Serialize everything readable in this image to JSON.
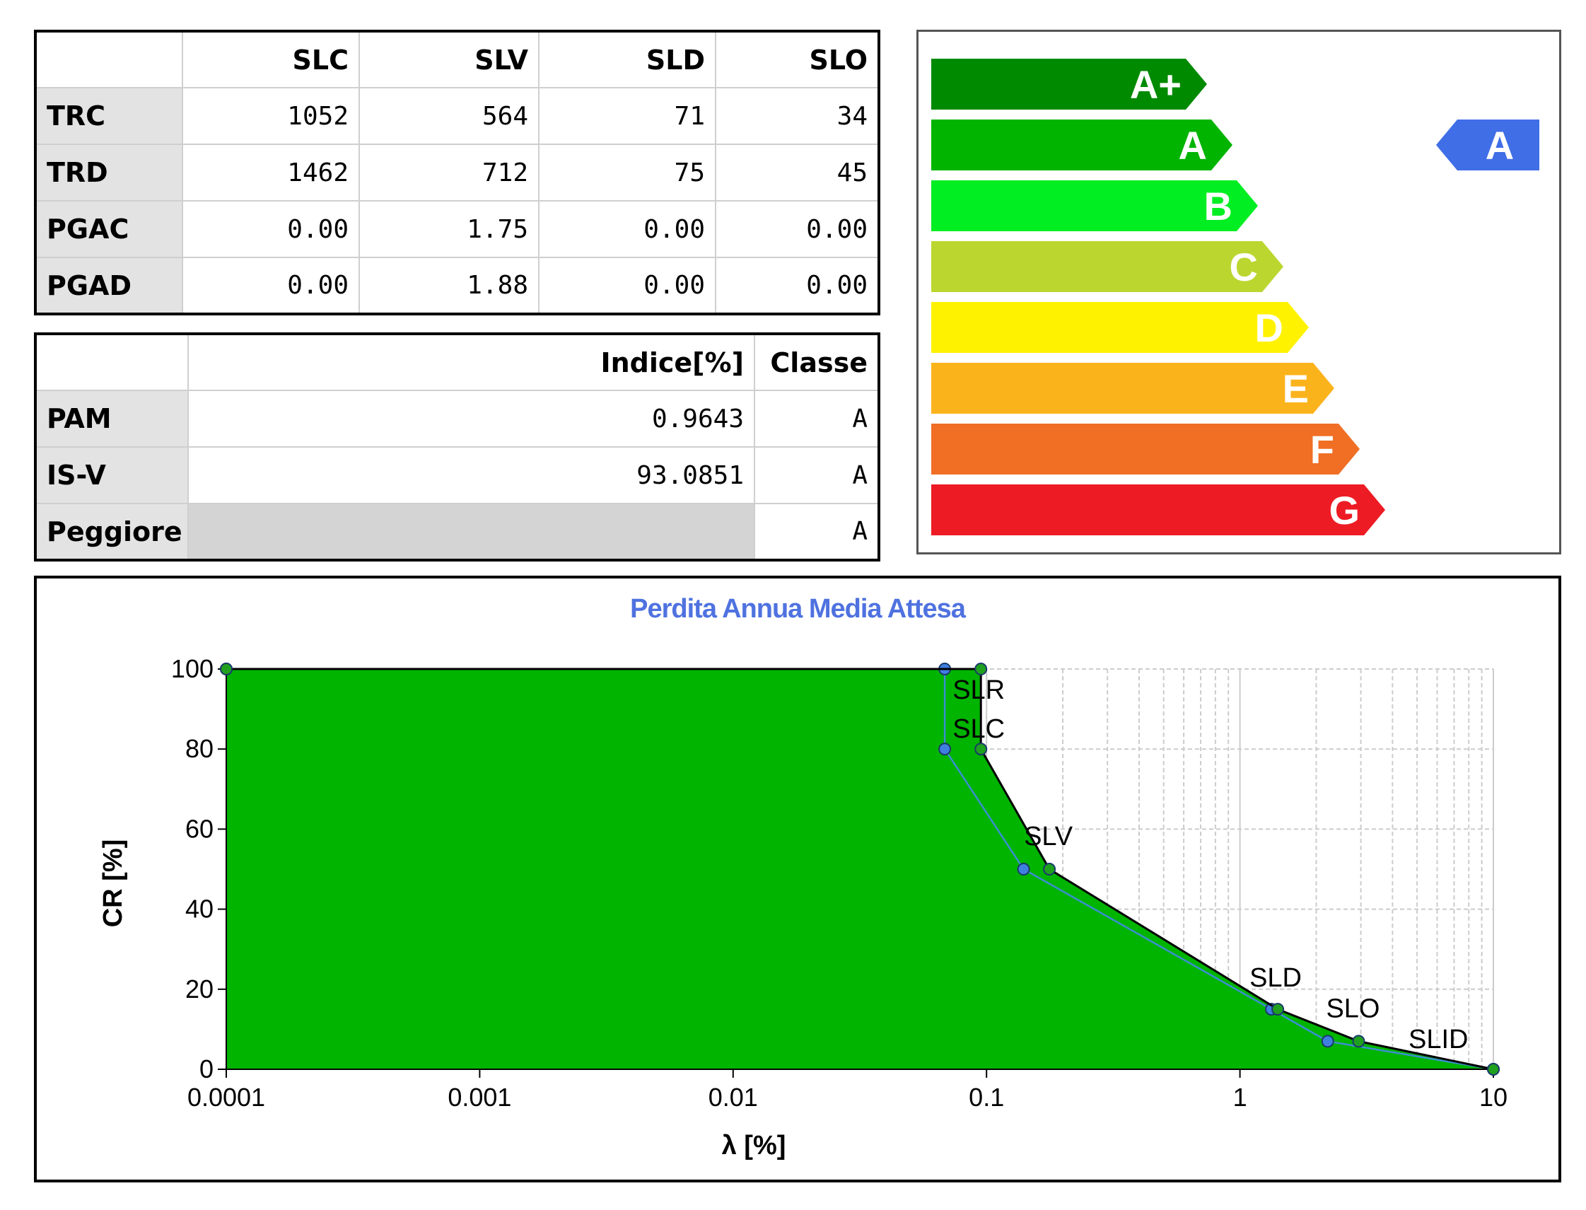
{
  "table_states": {
    "columns": [
      "SLC",
      "SLV",
      "SLD",
      "SLO"
    ],
    "rows": [
      {
        "label": "TRC",
        "values": [
          "1052",
          "564",
          "71",
          "34"
        ]
      },
      {
        "label": "TRD",
        "values": [
          "1462",
          "712",
          "75",
          "45"
        ]
      },
      {
        "label": "PGAC",
        "values": [
          "0.00",
          "1.75",
          "0.00",
          "0.00"
        ]
      },
      {
        "label": "PGAD",
        "values": [
          "0.00",
          "1.88",
          "0.00",
          "0.00"
        ]
      }
    ]
  },
  "table_index": {
    "columns": [
      "Indice[%]",
      "Classe"
    ],
    "rows": [
      {
        "label": "PAM",
        "values": [
          "0.9643",
          "A"
        ]
      },
      {
        "label": "IS-V",
        "values": [
          "93.0851",
          "A"
        ]
      },
      {
        "label": "Peggiore",
        "values": [
          "",
          "A"
        ]
      }
    ]
  },
  "energy_classes": {
    "classes": [
      {
        "label": "A+",
        "color": "#008a00"
      },
      {
        "label": "A",
        "color": "#00b400"
      },
      {
        "label": "B",
        "color": "#00ee22"
      },
      {
        "label": "C",
        "color": "#bcd630"
      },
      {
        "label": "D",
        "color": "#fff200"
      },
      {
        "label": "E",
        "color": "#fbb31c"
      },
      {
        "label": "F",
        "color": "#f06f25"
      },
      {
        "label": "G",
        "color": "#ed1c24"
      }
    ],
    "indicator": {
      "label": "A",
      "color": "#3f6ee6",
      "class_index": 1
    }
  },
  "chart_data": {
    "type": "area",
    "title": "Perdita Annua Media Attesa",
    "xlabel": "λ [%]",
    "ylabel": "CR [%]",
    "x_scale": "log",
    "xlim": [
      0.0001,
      10
    ],
    "ylim": [
      0,
      100
    ],
    "x_ticks": [
      "0.0001",
      "0.001",
      "0.01",
      "0.1",
      "1",
      "10"
    ],
    "y_ticks": [
      "0",
      "20",
      "40",
      "60",
      "80",
      "100"
    ],
    "fill_color": "#00b400",
    "series": [
      {
        "color": "#000000",
        "marker_color": "#1fa01f",
        "points": [
          {
            "x": 0.0001,
            "y": 100
          },
          {
            "x": 0.095,
            "y": 100,
            "label": "SLR"
          },
          {
            "x": 0.095,
            "y": 80,
            "label": "SLC"
          },
          {
            "x": 0.177,
            "y": 50,
            "label": "SLV"
          },
          {
            "x": 1.41,
            "y": 15,
            "label": "SLD"
          },
          {
            "x": 2.94,
            "y": 7,
            "label": "SLO"
          },
          {
            "x": 10,
            "y": 0,
            "label": "SLID"
          }
        ]
      },
      {
        "color": "#3b8fd0",
        "marker_color": "#3f7fe0",
        "points": [
          {
            "x": 0.0001,
            "y": 100
          },
          {
            "x": 0.0684,
            "y": 100
          },
          {
            "x": 0.0684,
            "y": 80
          },
          {
            "x": 0.14,
            "y": 50
          },
          {
            "x": 1.33,
            "y": 15
          },
          {
            "x": 2.22,
            "y": 7
          },
          {
            "x": 10,
            "y": 0
          }
        ]
      }
    ]
  }
}
